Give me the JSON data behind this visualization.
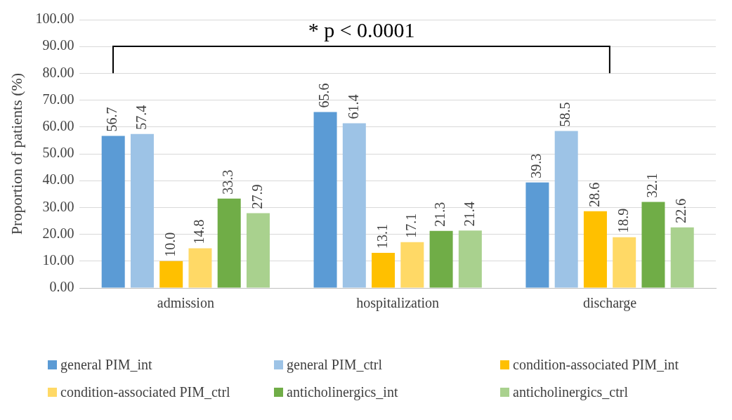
{
  "chart_data": {
    "type": "bar",
    "ylabel": "Proportion of patients (%)",
    "categories": [
      "admission",
      "hospitalization",
      "discharge"
    ],
    "series": [
      {
        "name": "general PIM_int",
        "color": "#5b9bd5",
        "values": [
          56.7,
          65.6,
          39.3
        ],
        "value_labels": [
          "56.7",
          "65.6",
          "39.3"
        ]
      },
      {
        "name": "general PIM_ctrl",
        "color": "#9dc3e6",
        "values": [
          57.4,
          61.4,
          58.5
        ],
        "value_labels": [
          "57.4",
          "61.4",
          "58.5"
        ]
      },
      {
        "name": "condition-associated PIM_int",
        "color": "#ffc000",
        "values": [
          10.0,
          13.1,
          28.6
        ],
        "value_labels": [
          "10.0",
          "13.1",
          "28.6"
        ]
      },
      {
        "name": "condition-associated PIM_ctrl",
        "color": "#ffd966",
        "values": [
          14.8,
          17.1,
          18.9
        ],
        "value_labels": [
          "14.8",
          "17.1",
          "18.9"
        ]
      },
      {
        "name": "anticholinergics_int",
        "color": "#70ad47",
        "values": [
          33.3,
          21.3,
          32.1
        ],
        "value_labels": [
          "33.3",
          "21.3",
          "32.1"
        ]
      },
      {
        "name": "anticholinergics_ctrl",
        "color": "#a9d18e",
        "values": [
          27.9,
          21.4,
          22.6
        ],
        "value_labels": [
          "27.9",
          "21.4",
          "22.6"
        ]
      }
    ],
    "ylim": [
      0,
      100
    ],
    "yticks": [
      {
        "value": 0,
        "label": "0.00"
      },
      {
        "value": 10,
        "label": "10.00"
      },
      {
        "value": 20,
        "label": "20.00"
      },
      {
        "value": 30,
        "label": "30.00"
      },
      {
        "value": 40,
        "label": "40.00"
      },
      {
        "value": 50,
        "label": "50.00"
      },
      {
        "value": 60,
        "label": "60.00"
      },
      {
        "value": 70,
        "label": "70.00"
      },
      {
        "value": 80,
        "label": "80.00"
      },
      {
        "value": 90,
        "label": "90.00"
      },
      {
        "value": 100,
        "label": "100.00"
      }
    ],
    "grid": "y",
    "legend": "bottom",
    "annotations": [
      "* p < 0.0001"
    ]
  }
}
